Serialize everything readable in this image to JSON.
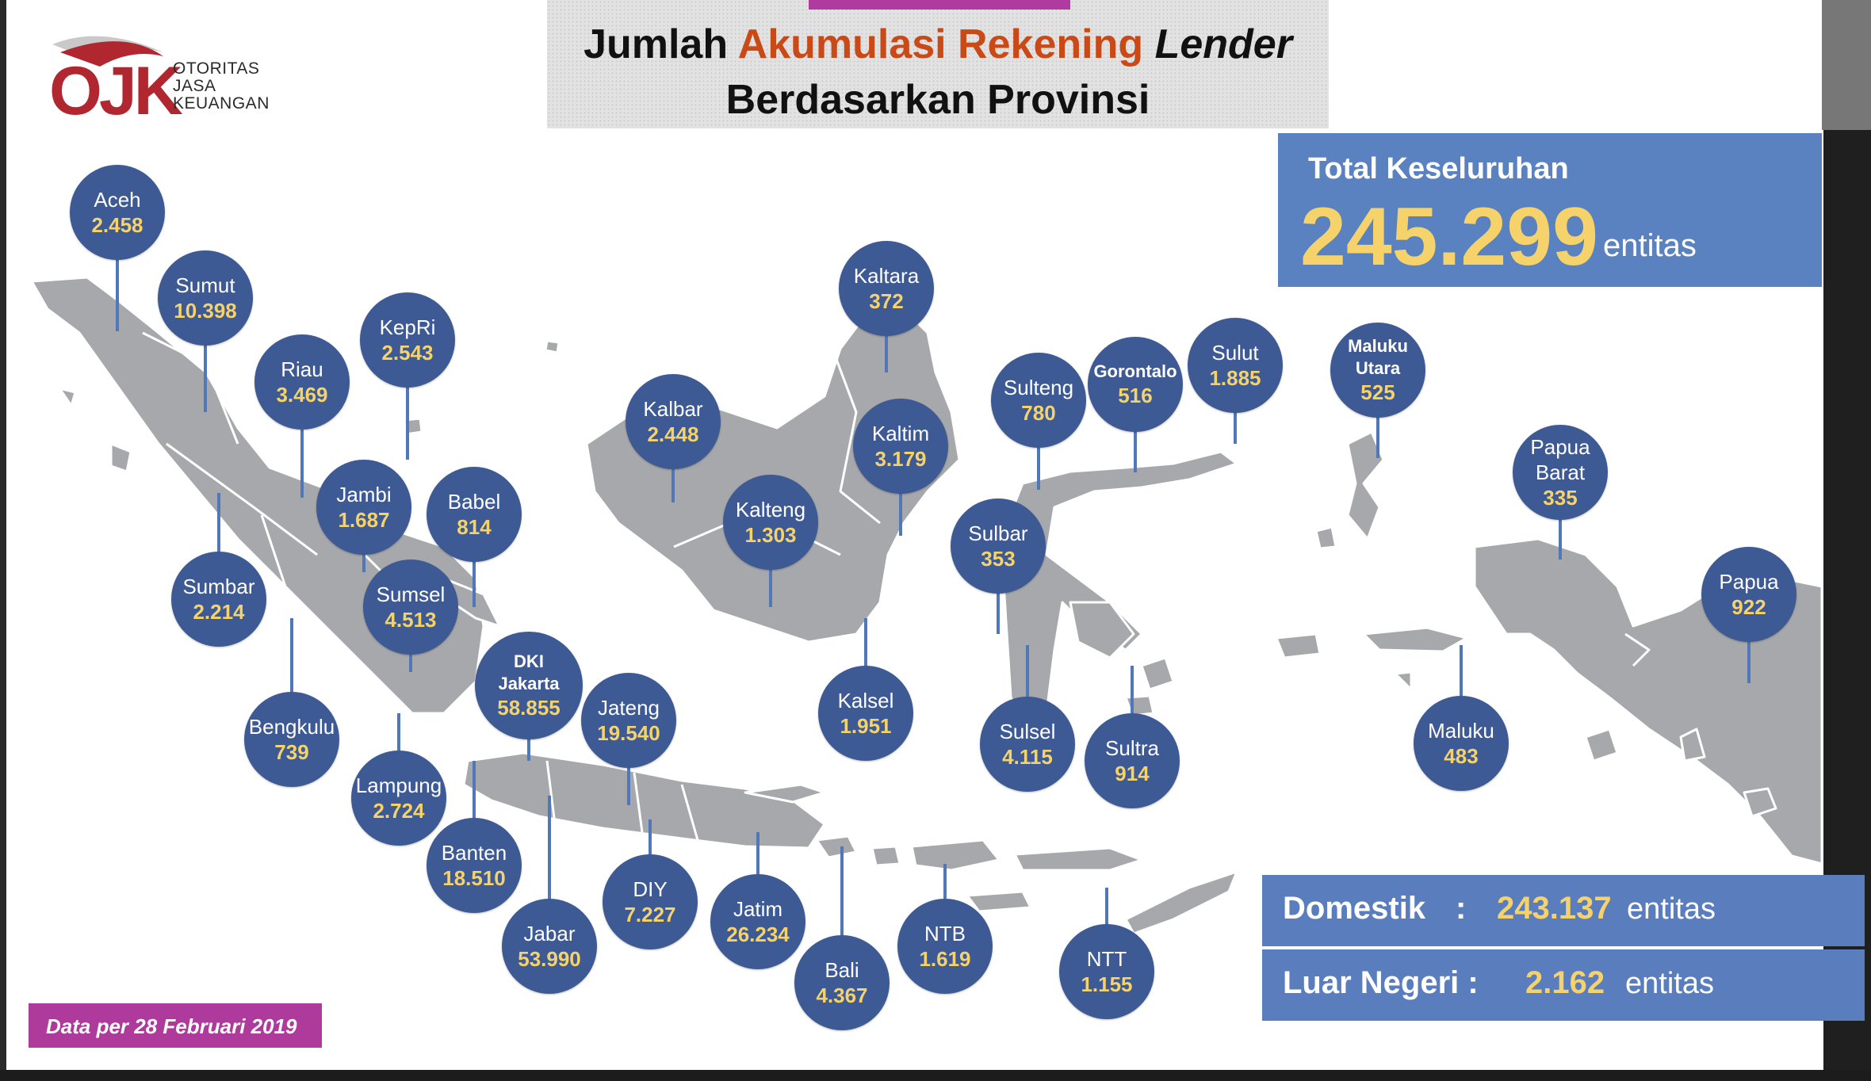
{
  "title": {
    "part1": "Jumlah ",
    "part2": "Akumulasi Rekening ",
    "part3": "Lender",
    "line2": "Berdasarkan Provinsi"
  },
  "logo": {
    "mark": "OJK",
    "line1": "OTORITAS",
    "line2": "JASA",
    "line3": "KEUANGAN"
  },
  "total": {
    "label": "Total Keseluruhan",
    "value": "245.299",
    "unit": "entitas"
  },
  "domestik": {
    "label": "Domestik",
    "colon": ":",
    "value": "243.137",
    "unit": "entitas"
  },
  "luar_negeri": {
    "label": "Luar Negeri :",
    "value": "2.162",
    "unit": "entitas"
  },
  "date_note": "Data per 28 Februari 2019",
  "colors": {
    "bubble": "#3d5a94",
    "value_text": "#f5d36a",
    "land": "#a7a8ab",
    "accent_purple": "#ae3b9b",
    "title_orange": "#c94a17"
  },
  "provinces": [
    {
      "id": "aceh",
      "name": "Aceh",
      "value": "2.458"
    },
    {
      "id": "sumut",
      "name": "Sumut",
      "value": "10.398"
    },
    {
      "id": "riau",
      "name": "Riau",
      "value": "3.469"
    },
    {
      "id": "kepri",
      "name": "KepRi",
      "value": "2.543"
    },
    {
      "id": "jambi",
      "name": "Jambi",
      "value": "1.687"
    },
    {
      "id": "babel",
      "name": "Babel",
      "value": "814"
    },
    {
      "id": "sumbar",
      "name": "Sumbar",
      "value": "2.214"
    },
    {
      "id": "sumsel",
      "name": "Sumsel",
      "value": "4.513"
    },
    {
      "id": "bengkulu",
      "name": "Bengkulu",
      "value": "739"
    },
    {
      "id": "lampung",
      "name": "Lampung",
      "value": "2.724"
    },
    {
      "id": "dki",
      "name": "DKI Jakarta",
      "value": "58.855"
    },
    {
      "id": "banten",
      "name": "Banten",
      "value": "18.510"
    },
    {
      "id": "jabar",
      "name": "Jabar",
      "value": "53.990"
    },
    {
      "id": "jateng",
      "name": "Jateng",
      "value": "19.540"
    },
    {
      "id": "diy",
      "name": "DIY",
      "value": "7.227"
    },
    {
      "id": "jatim",
      "name": "Jatim",
      "value": "26.234"
    },
    {
      "id": "bali",
      "name": "Bali",
      "value": "4.367"
    },
    {
      "id": "ntb",
      "name": "NTB",
      "value": "1.619"
    },
    {
      "id": "ntt",
      "name": "NTT",
      "value": "1.155"
    },
    {
      "id": "kalbar",
      "name": "Kalbar",
      "value": "2.448"
    },
    {
      "id": "kalteng",
      "name": "Kalteng",
      "value": "1.303"
    },
    {
      "id": "kaltara",
      "name": "Kaltara",
      "value": "372"
    },
    {
      "id": "kaltim",
      "name": "Kaltim",
      "value": "3.179"
    },
    {
      "id": "kalsel",
      "name": "Kalsel",
      "value": "1.951"
    },
    {
      "id": "sulteng",
      "name": "Sulteng",
      "value": "780"
    },
    {
      "id": "gorontalo",
      "name": "Gorontalo",
      "value": "516"
    },
    {
      "id": "sulut",
      "name": "Sulut",
      "value": "1.885"
    },
    {
      "id": "sulbar",
      "name": "Sulbar",
      "value": "353"
    },
    {
      "id": "sulsel",
      "name": "Sulsel",
      "value": "4.115"
    },
    {
      "id": "sultra",
      "name": "Sultra",
      "value": "914"
    },
    {
      "id": "malut",
      "name": "Maluku Utara",
      "value": "525"
    },
    {
      "id": "maluku",
      "name": "Maluku",
      "value": "483"
    },
    {
      "id": "pabar",
      "name": "Papua Barat",
      "value": "335"
    },
    {
      "id": "papua",
      "name": "Papua",
      "value": "922"
    }
  ]
}
